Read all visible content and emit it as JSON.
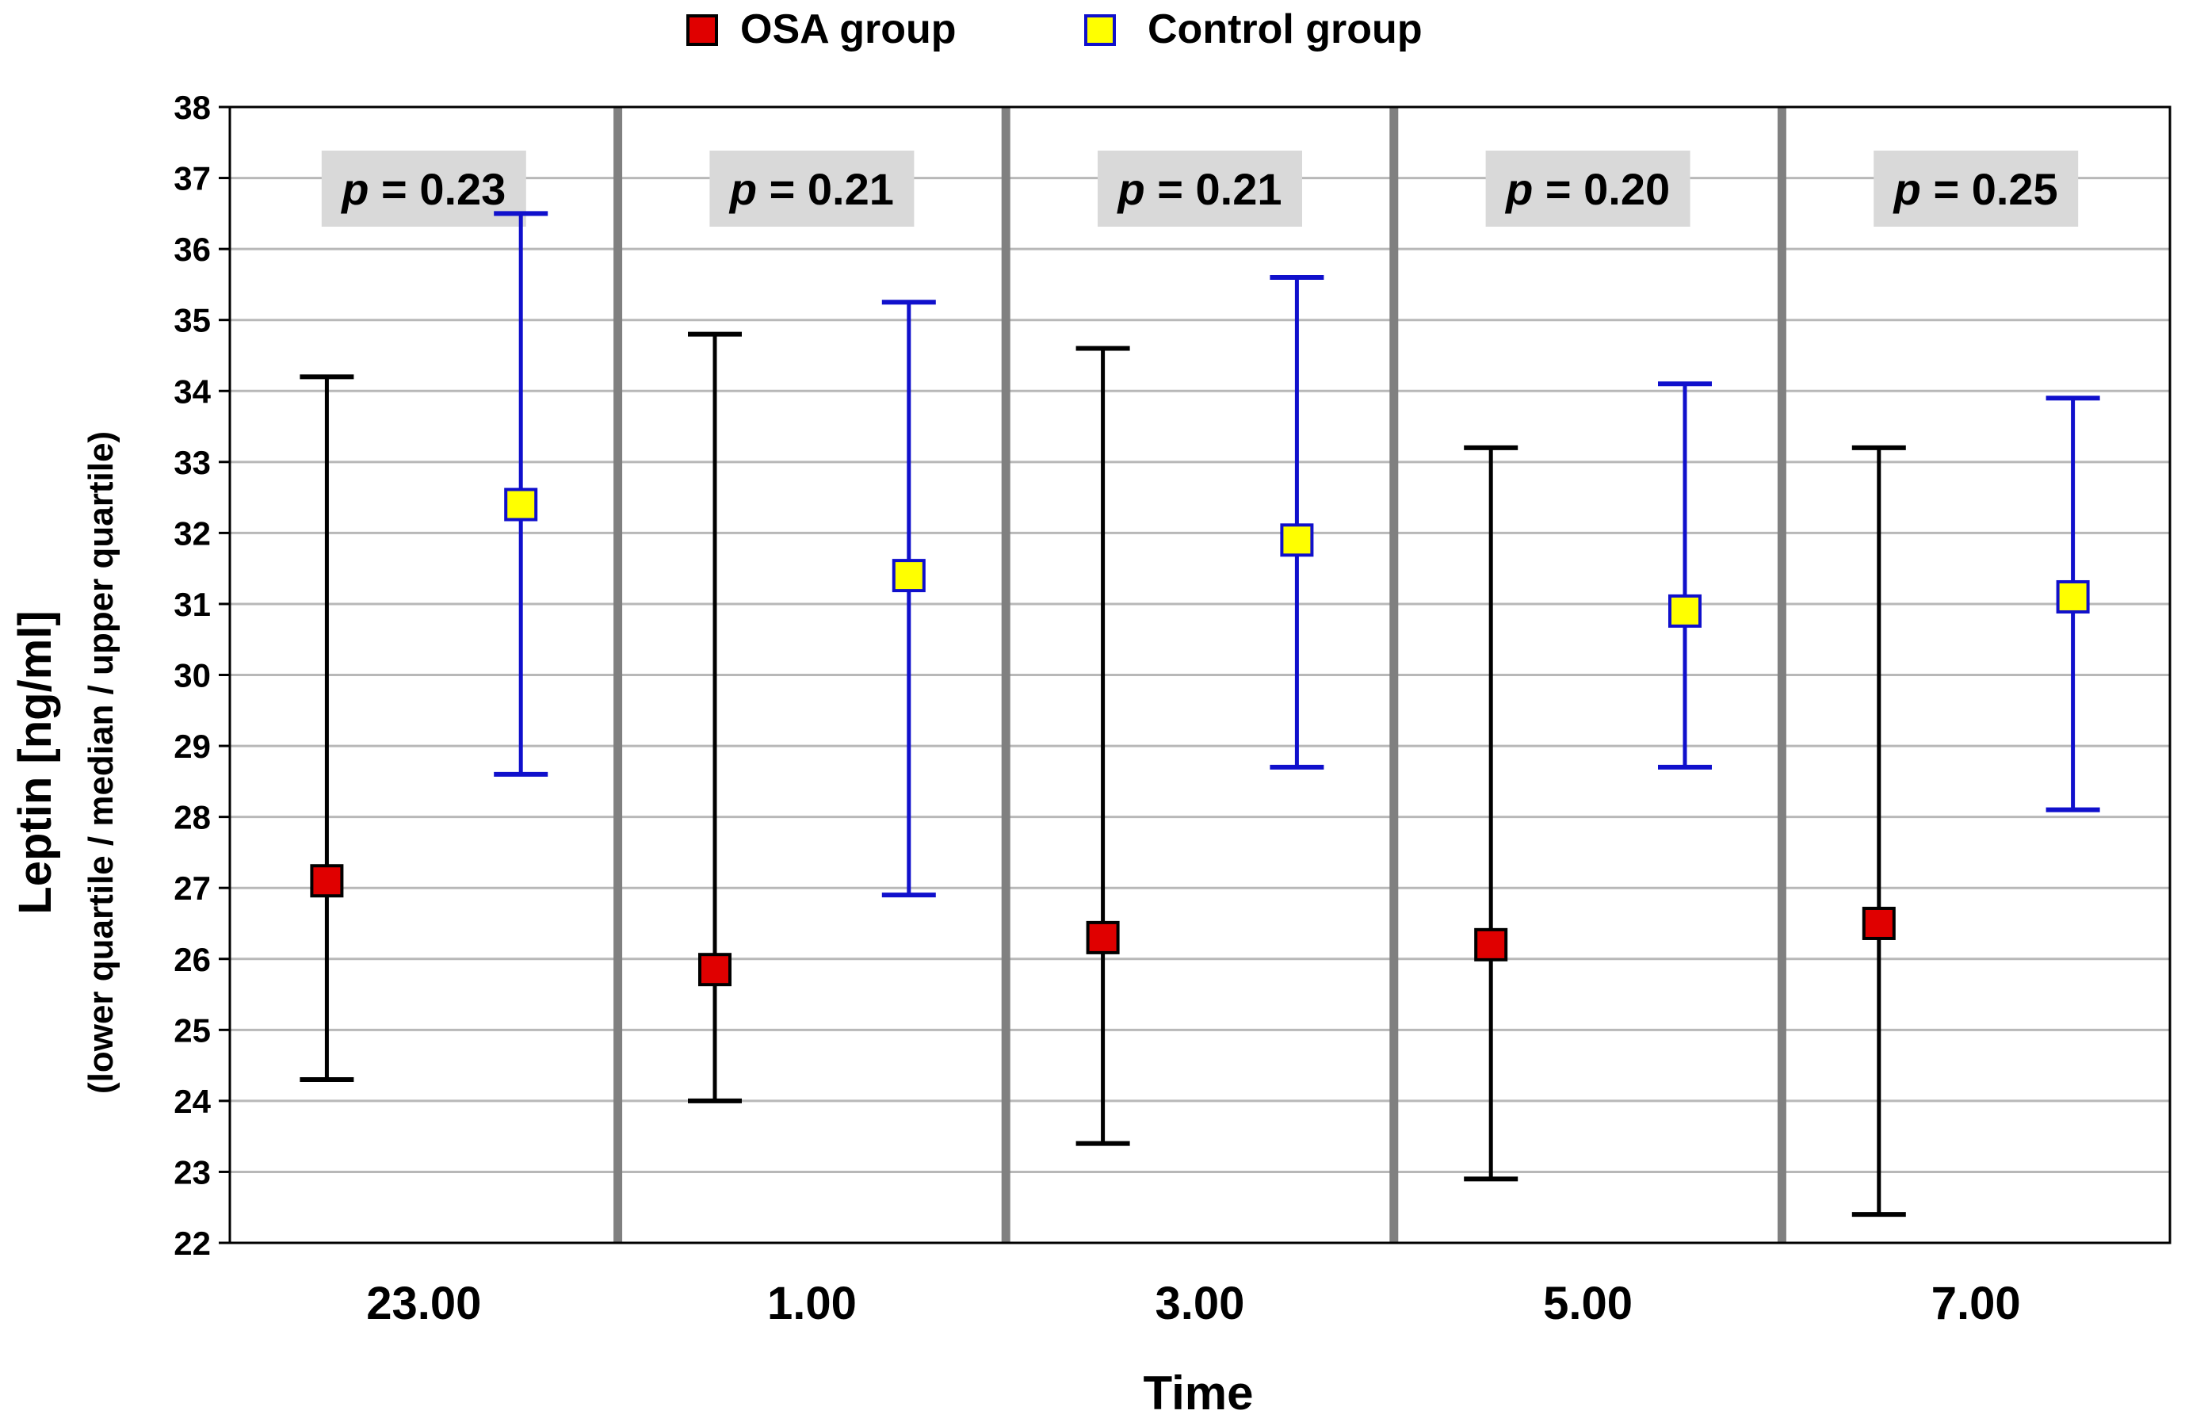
{
  "chart_data": {
    "type": "scatter",
    "subtype": "median-with-interquartile-range",
    "title": "",
    "xlabel": "Time",
    "ylabel": "Leptin [ng/ml]",
    "ylabel_sub": "(lower quartile / median / upper quartile)",
    "ylim": [
      22,
      38
    ],
    "yticks": [
      22,
      23,
      24,
      25,
      26,
      27,
      28,
      29,
      30,
      31,
      32,
      33,
      34,
      35,
      36,
      37,
      38
    ],
    "grid": true,
    "legend_position": "top-center",
    "categories": [
      "23.00",
      "1.00",
      "3.00",
      "5.00",
      "7.00"
    ],
    "p_values": [
      {
        "prefix": "p",
        "text": " = 0.23"
      },
      {
        "prefix": "p",
        "text": " = 0.21"
      },
      {
        "prefix": "p",
        "text": " = 0.21"
      },
      {
        "prefix": "p",
        "text": " = 0.20"
      },
      {
        "prefix": "p",
        "text": " = 0.25"
      }
    ],
    "series": [
      {
        "name": "OSA group",
        "marker_fill": "#e00000",
        "marker_stroke": "#000000",
        "whisker_color": "#000000",
        "median": [
          27.1,
          25.85,
          26.3,
          26.2,
          26.5
        ],
        "lower_quartile": [
          24.3,
          24.0,
          23.4,
          22.9,
          22.4
        ],
        "upper_quartile": [
          34.2,
          34.8,
          34.6,
          33.2,
          33.2
        ]
      },
      {
        "name": "Control group",
        "marker_fill": "#ffff00",
        "marker_stroke": "#1010cc",
        "whisker_color": "#1010cc",
        "median": [
          32.4,
          31.4,
          31.9,
          30.9,
          31.1
        ],
        "lower_quartile": [
          28.6,
          26.9,
          28.7,
          28.7,
          28.1
        ],
        "upper_quartile": [
          36.5,
          35.25,
          35.6,
          34.1,
          33.9
        ]
      }
    ]
  },
  "colors": {
    "grid": "#b8b8b8",
    "separator": "#808080",
    "p_box": "#d9d9d9",
    "axis": "#000000"
  }
}
